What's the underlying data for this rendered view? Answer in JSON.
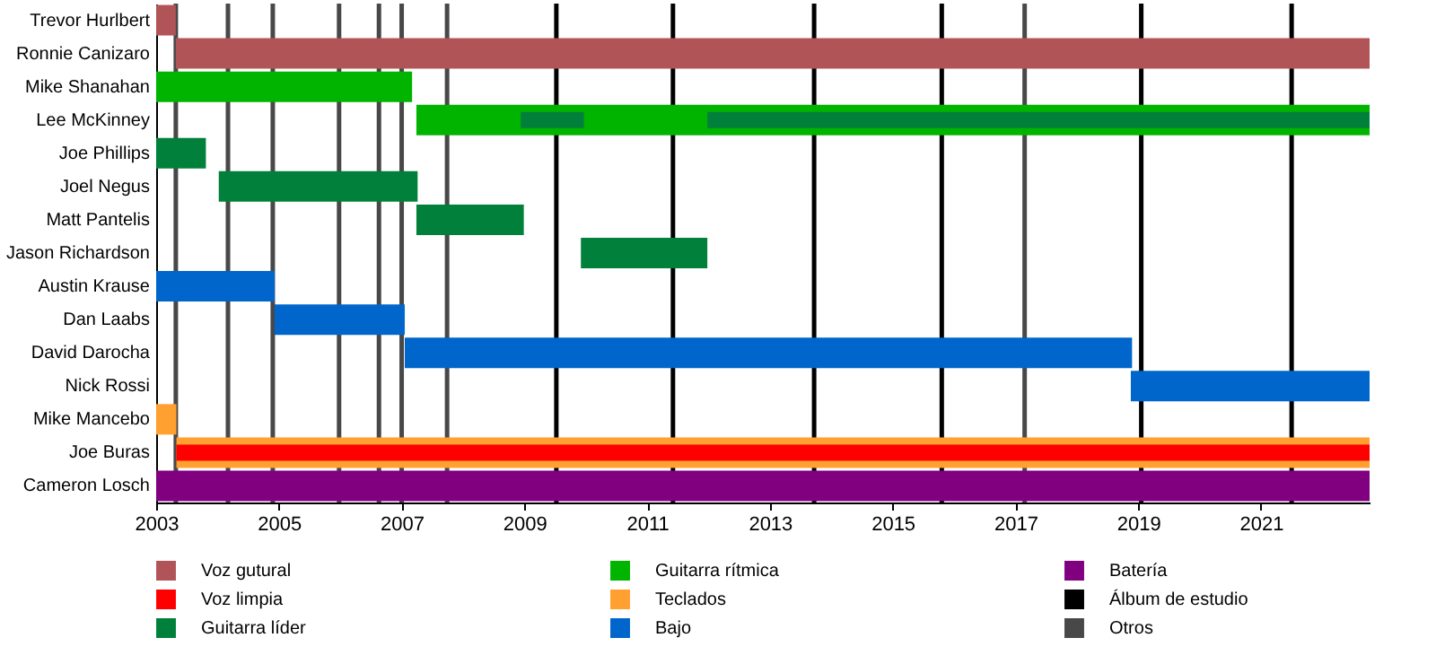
{
  "chart_data": {
    "type": "bar",
    "orientation": "horizontal",
    "categories": [
      "Trevor Hurlbert",
      "Ronnie Canizaro",
      "Mike Shanahan",
      "Lee McKinney",
      "Joe Phillips",
      "Joel Negus",
      "Matt Pantelis",
      "Jason Richardson",
      "Austin Krause",
      "Dan Laabs",
      "David Darocha",
      "Nick Rossi",
      "Mike Mancebo",
      "Joe Buras",
      "Cameron Losch"
    ],
    "series": [
      {
        "name": "Voz gutural",
        "color": "#b05458",
        "base": [
          2003,
          2003.32,
          null,
          null,
          null,
          null,
          null,
          null,
          null,
          null,
          null,
          null,
          null,
          null,
          null
        ],
        "values": [
          0.32,
          19.45,
          null,
          null,
          null,
          null,
          null,
          null,
          null,
          null,
          null,
          null,
          null,
          null,
          null
        ]
      },
      {
        "name": "Voz limpia",
        "color": "#ff0000",
        "base": [
          null,
          null,
          null,
          null,
          null,
          null,
          null,
          null,
          null,
          null,
          null,
          null,
          null,
          2003.33,
          null
        ],
        "values": [
          null,
          null,
          null,
          null,
          null,
          null,
          null,
          null,
          null,
          null,
          null,
          null,
          null,
          19.44,
          null
        ]
      },
      {
        "name": "Guitarra líder",
        "color": "#00803a",
        "base": [
          null,
          null,
          null,
          2008.94,
          2003,
          2004.02,
          2007.24,
          2009.92,
          null,
          null,
          null,
          null,
          null,
          null,
          null
        ],
        "values": [
          null,
          null,
          null,
          1.03,
          0.81,
          3.24,
          1.75,
          2.06,
          null,
          null,
          null,
          null,
          null,
          null,
          null
        ]
      },
      {
        "name": "Guitarra rítmica",
        "color": "#00b400",
        "base": [
          null,
          null,
          2003,
          2007.24,
          null,
          null,
          null,
          null,
          null,
          null,
          null,
          null,
          null,
          null,
          null
        ],
        "values": [
          null,
          null,
          4.17,
          15.53,
          null,
          null,
          null,
          null,
          null,
          null,
          null,
          null,
          null,
          null,
          null
        ]
      },
      {
        "name": "Teclados",
        "color": "#ffa030",
        "base": [
          null,
          null,
          null,
          null,
          null,
          null,
          null,
          null,
          null,
          null,
          null,
          null,
          2003,
          2003.33,
          null
        ],
        "values": [
          null,
          null,
          null,
          null,
          null,
          null,
          null,
          null,
          null,
          null,
          null,
          null,
          0.33,
          19.44,
          null
        ]
      },
      {
        "name": "Bajo",
        "color": "#0066cc",
        "base": [
          null,
          null,
          null,
          null,
          null,
          null,
          null,
          null,
          2003,
          2004.93,
          2007.05,
          2018.88,
          null,
          null,
          null
        ],
        "values": [
          null,
          null,
          null,
          null,
          null,
          null,
          null,
          null,
          1.93,
          2.12,
          11.85,
          3.89,
          null,
          null,
          null
        ]
      },
      {
        "name": "Batería",
        "color": "#800080",
        "base": [
          null,
          null,
          null,
          null,
          null,
          null,
          null,
          null,
          null,
          null,
          null,
          null,
          null,
          null,
          2003
        ],
        "values": [
          null,
          null,
          null,
          null,
          null,
          null,
          null,
          null,
          null,
          null,
          null,
          null,
          null,
          null,
          19.77
        ]
      },
      {
        "color": "#00803a",
        "base": [
          null,
          null,
          null,
          2011.98,
          null,
          null,
          null,
          null,
          null,
          null,
          null,
          null,
          null,
          null,
          null
        ],
        "values": [
          null,
          null,
          null,
          10.79,
          null,
          null,
          null,
          null,
          null,
          null,
          null,
          null,
          null,
          null,
          null
        ]
      }
    ],
    "ref_lines": [
      {
        "axis": "x",
        "value": 2009.52,
        "label": "Álbum de estudio",
        "color": "#000000"
      },
      {
        "axis": "x",
        "value": 2011.42,
        "color": "#000000"
      },
      {
        "axis": "x",
        "value": 2013.72,
        "color": "#000000"
      },
      {
        "axis": "x",
        "value": 2015.8,
        "color": "#000000"
      },
      {
        "axis": "x",
        "value": 2019.05,
        "color": "#000000"
      },
      {
        "axis": "x",
        "value": 2021.5,
        "color": "#000000"
      },
      {
        "axis": "x",
        "value": 2003.32,
        "label": "Otros",
        "color": "#484848"
      },
      {
        "axis": "x",
        "value": 2004.17,
        "color": "#484848"
      },
      {
        "axis": "x",
        "value": 2004.9,
        "color": "#484848"
      },
      {
        "axis": "x",
        "value": 2005.98,
        "color": "#484848"
      },
      {
        "axis": "x",
        "value": 2006.63,
        "color": "#484848"
      },
      {
        "axis": "x",
        "value": 2007.0,
        "color": "#484848"
      },
      {
        "axis": "x",
        "value": 2007.74,
        "color": "#484848"
      },
      {
        "axis": "x",
        "value": 2017.15,
        "color": "#484848"
      }
    ],
    "xlim": [
      2003,
      2022.77
    ],
    "xticks": [
      2003,
      2005,
      2007,
      2009,
      2011,
      2013,
      2015,
      2017,
      2019,
      2021
    ],
    "legend": "bottom"
  }
}
